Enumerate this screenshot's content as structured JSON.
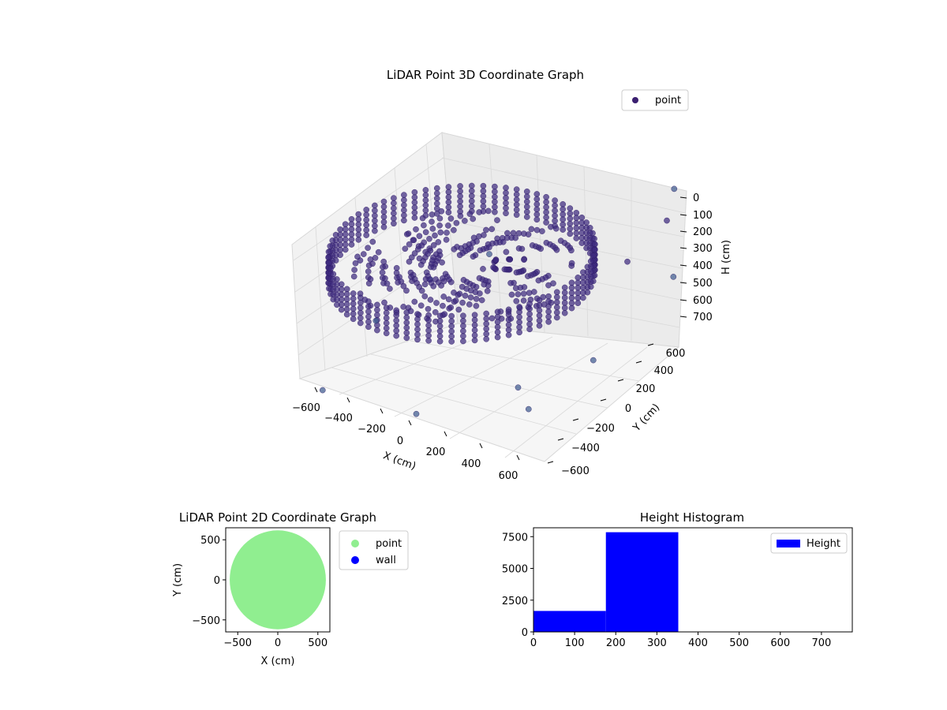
{
  "chart_data": [
    {
      "type": "scatter",
      "projection": "3d",
      "title": "LiDAR Point 3D Coordinate Graph",
      "xlabel": "X (cm)",
      "ylabel": "Y (cm)",
      "zlabel": "H (cm)",
      "xticks": [
        "−600",
        "−400",
        "−200",
        "0",
        "200",
        "400",
        "600"
      ],
      "yticks": [
        "−600",
        "−400",
        "−200",
        "0",
        "200",
        "400",
        "600"
      ],
      "zticks": [
        "0",
        "100",
        "200",
        "300",
        "400",
        "500",
        "600",
        "700"
      ],
      "xlim": [
        -650,
        650
      ],
      "ylim": [
        -650,
        650
      ],
      "zlim": [
        0,
        750
      ],
      "z_inverted": true,
      "grid": true,
      "legend": {
        "position": "upper-right",
        "entries": [
          {
            "label": "point",
            "color": "#3b1f70"
          }
        ]
      },
      "color": "#3b2f86",
      "description_of_data": [
        "ring of wall points at radius ~600 cm spanning heights 200-300 cm",
        "floor/ceiling points inside ring",
        "sparse outliers"
      ],
      "series": [
        {
          "name": "point",
          "ring_radius": 620,
          "height_range": [
            180,
            330
          ],
          "outliers": [
            [
              -300,
              500,
              650
            ],
            [
              -450,
              300,
              700
            ],
            [
              200,
              -500,
              720
            ],
            [
              500,
              -200,
              690
            ],
            [
              650,
              100,
              700
            ],
            [
              600,
              650,
              620
            ],
            [
              -200,
              -640,
              600
            ],
            [
              100,
              -640,
              100
            ],
            [
              650,
              600,
              50
            ],
            [
              700,
              500,
              150
            ],
            [
              660,
              300,
              260
            ],
            [
              650,
              -300,
              700
            ]
          ]
        }
      ]
    },
    {
      "type": "scatter",
      "title": "LiDAR Point 2D Coordinate Graph",
      "xlabel": "X (cm)",
      "ylabel": "Y (cm)",
      "xticks": [
        "−500",
        "0",
        "500"
      ],
      "yticks": [
        "500",
        "0",
        "−500"
      ],
      "xlim": [
        -650,
        650
      ],
      "ylim": [
        -650,
        650
      ],
      "legend": {
        "position": "outside-right",
        "entries": [
          {
            "label": "point",
            "color": "#90ee90"
          },
          {
            "label": "wall",
            "color": "#0000ff"
          }
        ]
      },
      "series": [
        {
          "name": "point",
          "color": "#90ee90",
          "shape": "disc",
          "center": [
            0,
            0
          ],
          "radius": 600
        },
        {
          "name": "wall",
          "color": "#0000ff",
          "values": []
        }
      ]
    },
    {
      "type": "bar",
      "subtype": "histogram",
      "title": "Height Histogram",
      "xlabel": "",
      "ylabel": "",
      "xticks": [
        "0",
        "100",
        "200",
        "300",
        "400",
        "500",
        "600",
        "700"
      ],
      "yticks": [
        "0",
        "2500",
        "5000",
        "7500"
      ],
      "xlim": [
        0,
        775
      ],
      "ylim": [
        0,
        8200
      ],
      "legend": {
        "position": "upper-right",
        "entries": [
          {
            "label": "Height",
            "color": "#0000ff"
          }
        ]
      },
      "series": [
        {
          "name": "Height",
          "bins": [
            [
              0,
              176
            ],
            [
              176,
              352
            ],
            [
              352,
              528
            ],
            [
              528,
              704
            ]
          ],
          "values": [
            1650,
            7850,
            30,
            15
          ]
        }
      ]
    }
  ]
}
